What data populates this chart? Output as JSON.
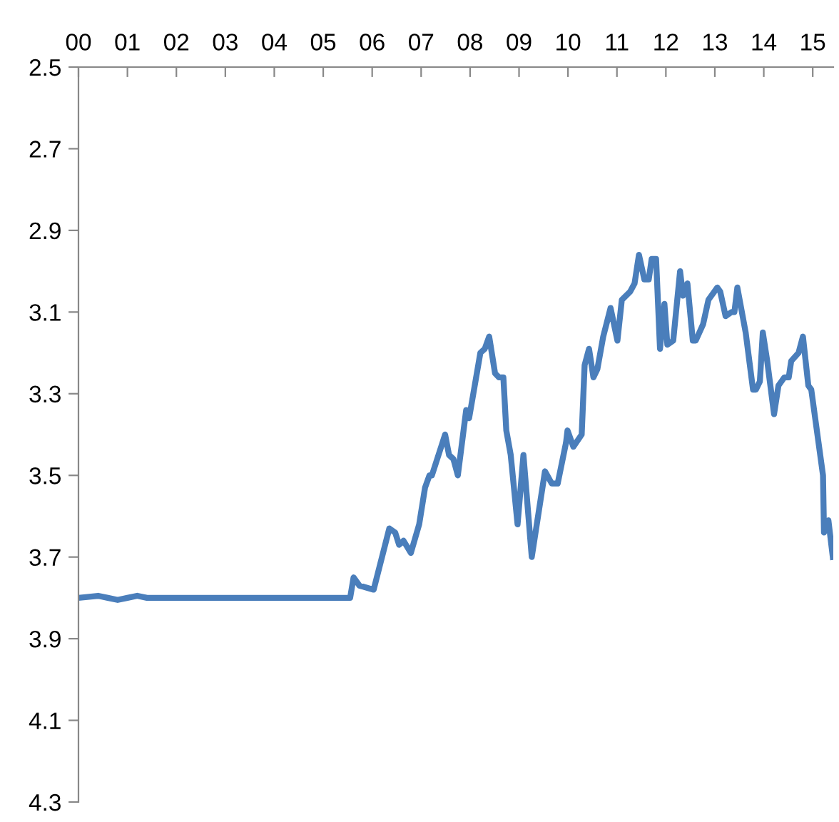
{
  "chart_data": {
    "type": "line",
    "x": [
      0,
      0.4,
      0.6,
      0.8,
      1.0,
      1.2,
      1.4,
      2.0,
      2.5,
      3.0,
      3.5,
      4.0,
      4.5,
      5.0,
      5.55,
      5.62,
      5.74,
      6.03,
      6.35,
      6.47,
      6.55,
      6.64,
      6.79,
      6.96,
      7.08,
      7.17,
      7.22,
      7.49,
      7.57,
      7.66,
      7.75,
      7.92,
      7.98,
      8.21,
      8.3,
      8.39,
      8.51,
      8.59,
      8.68,
      8.74,
      8.83,
      8.97,
      9.09,
      9.26,
      9.53,
      9.67,
      9.79,
      9.96,
      9.99,
      10.11,
      10.28,
      10.34,
      10.43,
      10.52,
      10.6,
      10.72,
      10.87,
      11.01,
      11.1,
      11.27,
      11.36,
      11.45,
      11.56,
      11.65,
      11.71,
      11.8,
      11.88,
      11.97,
      12.03,
      12.15,
      12.29,
      12.35,
      12.44,
      12.55,
      12.61,
      12.76,
      12.87,
      13.05,
      13.11,
      13.22,
      13.34,
      13.4,
      13.46,
      13.63,
      13.78,
      13.84,
      13.92,
      13.98,
      14.07,
      14.21,
      14.3,
      14.42,
      14.51,
      14.56,
      14.71,
      14.8,
      14.91,
      14.97,
      15.21,
      15.23,
      15.32,
      15.41
    ],
    "series": [
      {
        "color": "#4a7ebb",
        "values": [
          3.8,
          3.795,
          3.8,
          3.805,
          3.8,
          3.795,
          3.8,
          3.8,
          3.8,
          3.8,
          3.8,
          3.8,
          3.8,
          3.8,
          3.8,
          3.75,
          3.77,
          3.78,
          3.63,
          3.64,
          3.67,
          3.66,
          3.69,
          3.62,
          3.53,
          3.5,
          3.5,
          3.4,
          3.45,
          3.46,
          3.5,
          3.34,
          3.36,
          3.2,
          3.19,
          3.16,
          3.25,
          3.26,
          3.26,
          3.39,
          3.45,
          3.62,
          3.45,
          3.7,
          3.49,
          3.52,
          3.52,
          3.42,
          3.39,
          3.43,
          3.4,
          3.23,
          3.19,
          3.26,
          3.24,
          3.16,
          3.09,
          3.17,
          3.07,
          3.05,
          3.03,
          2.96,
          3.02,
          3.02,
          2.97,
          2.97,
          3.19,
          3.08,
          3.18,
          3.17,
          3.0,
          3.06,
          3.03,
          3.17,
          3.17,
          3.13,
          3.07,
          3.04,
          3.05,
          3.11,
          3.1,
          3.1,
          3.04,
          3.15,
          3.29,
          3.29,
          3.27,
          3.15,
          3.22,
          3.35,
          3.28,
          3.26,
          3.26,
          3.22,
          3.2,
          3.16,
          3.28,
          3.29,
          3.5,
          3.64,
          3.61,
          3.7
        ]
      }
    ],
    "xlim": [
      0,
      15.42
    ],
    "xticks": [
      {
        "value": 0,
        "label": "00"
      },
      {
        "value": 1,
        "label": "01"
      },
      {
        "value": 2,
        "label": "02"
      },
      {
        "value": 3,
        "label": "03"
      },
      {
        "value": 4,
        "label": "04"
      },
      {
        "value": 5,
        "label": "05"
      },
      {
        "value": 6,
        "label": "06"
      },
      {
        "value": 7,
        "label": "07"
      },
      {
        "value": 8,
        "label": "08"
      },
      {
        "value": 9,
        "label": "09"
      },
      {
        "value": 10,
        "label": "10"
      },
      {
        "value": 11,
        "label": "11"
      },
      {
        "value": 12,
        "label": "12"
      },
      {
        "value": 13,
        "label": "13"
      },
      {
        "value": 14,
        "label": "14"
      },
      {
        "value": 15,
        "label": "15"
      }
    ],
    "ylim": [
      4.3,
      2.5
    ],
    "yticks": [
      2.5,
      2.7,
      2.9,
      3.1,
      3.3,
      3.5,
      3.7,
      3.9,
      4.1,
      4.3
    ],
    "marker": "none",
    "line_style": "solid"
  }
}
